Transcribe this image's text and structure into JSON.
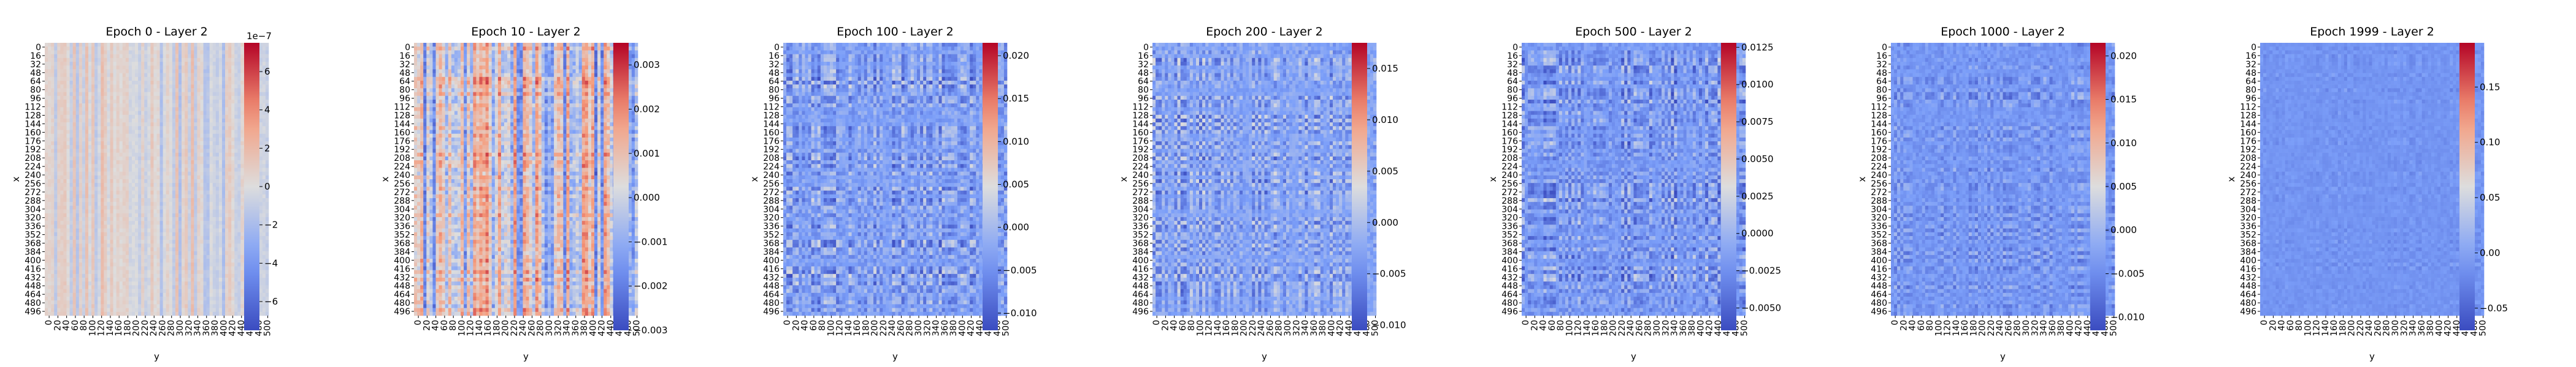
{
  "figure": {
    "type": "heatmap",
    "colormap": "coolwarm"
  },
  "chart_data": [
    {
      "type": "heatmap",
      "title": "Epoch 0 - Layer 2",
      "xlabel": "y",
      "ylabel": "x",
      "grid_size": [
        512,
        512
      ],
      "yticks": [
        "0",
        "16",
        "32",
        "48",
        "64",
        "80",
        "96",
        "112",
        "128",
        "144",
        "160",
        "176",
        "192",
        "208",
        "224",
        "240",
        "256",
        "272",
        "288",
        "304",
        "320",
        "336",
        "352",
        "368",
        "384",
        "400",
        "416",
        "432",
        "448",
        "464",
        "480",
        "496"
      ],
      "xticks": [
        "0",
        "20",
        "40",
        "60",
        "80",
        "100",
        "120",
        "140",
        "160",
        "180",
        "200",
        "220",
        "240",
        "260",
        "280",
        "300",
        "320",
        "340",
        "360",
        "380",
        "400",
        "420",
        "440",
        "460",
        "480",
        "500"
      ],
      "colorbar": {
        "range": [
          -7.5,
          7.5
        ],
        "ticks": [
          -6,
          -4,
          -2,
          0,
          2,
          4,
          6
        ],
        "tick_labels": [
          "−6",
          "−4",
          "−2",
          "0",
          "2",
          "4",
          "6"
        ],
        "exponent": "1e−7"
      },
      "value_range": [
        -7.5,
        7.5
      ],
      "pattern": "vertical-stripes-light"
    },
    {
      "type": "heatmap",
      "title": "Epoch 10 - Layer 2",
      "xlabel": "y",
      "ylabel": "x",
      "grid_size": [
        512,
        512
      ],
      "yticks": [
        "0",
        "16",
        "32",
        "48",
        "64",
        "80",
        "96",
        "112",
        "128",
        "144",
        "160",
        "176",
        "192",
        "208",
        "224",
        "240",
        "256",
        "272",
        "288",
        "304",
        "320",
        "336",
        "352",
        "368",
        "384",
        "400",
        "416",
        "432",
        "448",
        "464",
        "480",
        "496"
      ],
      "xticks": [
        "0",
        "20",
        "40",
        "60",
        "80",
        "100",
        "120",
        "140",
        "160",
        "180",
        "200",
        "220",
        "240",
        "260",
        "280",
        "300",
        "320",
        "340",
        "360",
        "380",
        "400",
        "420",
        "440",
        "460",
        "480",
        "500"
      ],
      "colorbar": {
        "range": [
          -0.003,
          0.0035
        ],
        "ticks": [
          -0.003,
          -0.002,
          -0.001,
          0.0,
          0.001,
          0.002,
          0.003
        ],
        "tick_labels": [
          "−0.003",
          "−0.002",
          "−0.001",
          "0.000",
          "0.001",
          "0.002",
          "0.003"
        ],
        "exponent": ""
      },
      "value_range": [
        -0.003,
        0.0035
      ],
      "pattern": "vertical-stripes-strong"
    },
    {
      "type": "heatmap",
      "title": "Epoch 100 - Layer 2",
      "xlabel": "y",
      "ylabel": "x",
      "grid_size": [
        512,
        512
      ],
      "yticks": [
        "0",
        "16",
        "32",
        "48",
        "64",
        "80",
        "96",
        "112",
        "128",
        "144",
        "160",
        "176",
        "192",
        "208",
        "224",
        "240",
        "256",
        "272",
        "288",
        "304",
        "320",
        "336",
        "352",
        "368",
        "384",
        "400",
        "416",
        "432",
        "448",
        "464",
        "480",
        "496"
      ],
      "xticks": [
        "0",
        "20",
        "40",
        "60",
        "80",
        "100",
        "120",
        "140",
        "160",
        "180",
        "200",
        "220",
        "240",
        "260",
        "280",
        "300",
        "320",
        "340",
        "360",
        "380",
        "400",
        "420",
        "440",
        "460",
        "480",
        "500"
      ],
      "colorbar": {
        "range": [
          -0.012,
          0.0215
        ],
        "ticks": [
          -0.01,
          -0.005,
          0.0,
          0.005,
          0.01,
          0.015,
          0.02
        ],
        "tick_labels": [
          "−0.010",
          "−0.005",
          "0.000",
          "0.005",
          "0.010",
          "0.015",
          "0.020"
        ],
        "exponent": ""
      },
      "value_range": [
        -0.012,
        0.0215
      ],
      "pattern": "checker"
    },
    {
      "type": "heatmap",
      "title": "Epoch 200 - Layer 2",
      "xlabel": "y",
      "ylabel": "x",
      "grid_size": [
        512,
        512
      ],
      "yticks": [
        "0",
        "16",
        "32",
        "48",
        "64",
        "80",
        "96",
        "112",
        "128",
        "144",
        "160",
        "176",
        "192",
        "208",
        "224",
        "240",
        "256",
        "272",
        "288",
        "304",
        "320",
        "336",
        "352",
        "368",
        "384",
        "400",
        "416",
        "432",
        "448",
        "464",
        "480",
        "496"
      ],
      "xticks": [
        "0",
        "20",
        "40",
        "60",
        "80",
        "100",
        "120",
        "140",
        "160",
        "180",
        "200",
        "220",
        "240",
        "260",
        "280",
        "300",
        "320",
        "340",
        "360",
        "380",
        "400",
        "420",
        "440",
        "460",
        "480",
        "500"
      ],
      "colorbar": {
        "range": [
          -0.0105,
          0.0175
        ],
        "ticks": [
          -0.01,
          -0.005,
          0.0,
          0.005,
          0.01,
          0.015
        ],
        "tick_labels": [
          "−0.010",
          "−0.005",
          "0.000",
          "0.005",
          "0.010",
          "0.015"
        ],
        "exponent": ""
      },
      "value_range": [
        -0.0105,
        0.0175
      ],
      "pattern": "checker"
    },
    {
      "type": "heatmap",
      "title": "Epoch 500 - Layer 2",
      "xlabel": "y",
      "ylabel": "x",
      "grid_size": [
        512,
        512
      ],
      "yticks": [
        "0",
        "16",
        "32",
        "48",
        "64",
        "80",
        "96",
        "112",
        "128",
        "144",
        "160",
        "176",
        "192",
        "208",
        "224",
        "240",
        "256",
        "272",
        "288",
        "304",
        "320",
        "336",
        "352",
        "368",
        "384",
        "400",
        "416",
        "432",
        "448",
        "464",
        "480",
        "496"
      ],
      "xticks": [
        "0",
        "20",
        "40",
        "60",
        "80",
        "100",
        "120",
        "140",
        "160",
        "180",
        "200",
        "220",
        "240",
        "260",
        "280",
        "300",
        "320",
        "340",
        "360",
        "380",
        "400",
        "420",
        "440",
        "460",
        "480",
        "500"
      ],
      "colorbar": {
        "range": [
          -0.0065,
          0.0128
        ],
        "ticks": [
          -0.005,
          -0.0025,
          0.0,
          0.0025,
          0.005,
          0.0075,
          0.01,
          0.0125
        ],
        "tick_labels": [
          "−0.0050",
          "−0.0025",
          "0.0000",
          "0.0025",
          "0.0050",
          "0.0075",
          "0.0100",
          "0.0125"
        ],
        "exponent": ""
      },
      "value_range": [
        -0.0065,
        0.0128
      ],
      "pattern": "checker"
    },
    {
      "type": "heatmap",
      "title": "Epoch 1000 - Layer 2",
      "xlabel": "y",
      "ylabel": "x",
      "grid_size": [
        512,
        512
      ],
      "yticks": [
        "0",
        "16",
        "32",
        "48",
        "64",
        "80",
        "96",
        "112",
        "128",
        "144",
        "160",
        "176",
        "192",
        "208",
        "224",
        "240",
        "256",
        "272",
        "288",
        "304",
        "320",
        "336",
        "352",
        "368",
        "384",
        "400",
        "416",
        "432",
        "448",
        "464",
        "480",
        "496"
      ],
      "xticks": [
        "0",
        "20",
        "40",
        "60",
        "80",
        "100",
        "120",
        "140",
        "160",
        "180",
        "200",
        "220",
        "240",
        "260",
        "280",
        "300",
        "320",
        "340",
        "360",
        "380",
        "400",
        "420",
        "440",
        "460",
        "480",
        "500"
      ],
      "colorbar": {
        "range": [
          -0.0115,
          0.0215
        ],
        "ticks": [
          -0.01,
          -0.005,
          0.0,
          0.005,
          0.01,
          0.015,
          0.02
        ],
        "tick_labels": [
          "−0.010",
          "−0.005",
          "0.000",
          "0.005",
          "0.010",
          "0.015",
          "0.020"
        ],
        "exponent": ""
      },
      "value_range": [
        -0.0115,
        0.0215
      ],
      "pattern": "checker-faint"
    },
    {
      "type": "heatmap",
      "title": "Epoch 1999 - Layer 2",
      "xlabel": "y",
      "ylabel": "x",
      "grid_size": [
        512,
        512
      ],
      "yticks": [
        "0",
        "16",
        "32",
        "48",
        "64",
        "80",
        "96",
        "112",
        "128",
        "144",
        "160",
        "176",
        "192",
        "208",
        "224",
        "240",
        "256",
        "272",
        "288",
        "304",
        "320",
        "336",
        "352",
        "368",
        "384",
        "400",
        "416",
        "432",
        "448",
        "464",
        "480",
        "496"
      ],
      "xticks": [
        "0",
        "20",
        "40",
        "60",
        "80",
        "100",
        "120",
        "140",
        "160",
        "180",
        "200",
        "220",
        "240",
        "260",
        "280",
        "300",
        "320",
        "340",
        "360",
        "380",
        "400",
        "420",
        "440",
        "460",
        "480",
        "500"
      ],
      "colorbar": {
        "range": [
          -0.07,
          0.19
        ],
        "ticks": [
          -0.05,
          0.0,
          0.05,
          0.1,
          0.15
        ],
        "tick_labels": [
          "−0.05",
          "0.00",
          "0.05",
          "0.10",
          "0.15"
        ],
        "exponent": ""
      },
      "value_range": [
        -0.07,
        0.19
      ],
      "pattern": "uniform-negative"
    }
  ]
}
